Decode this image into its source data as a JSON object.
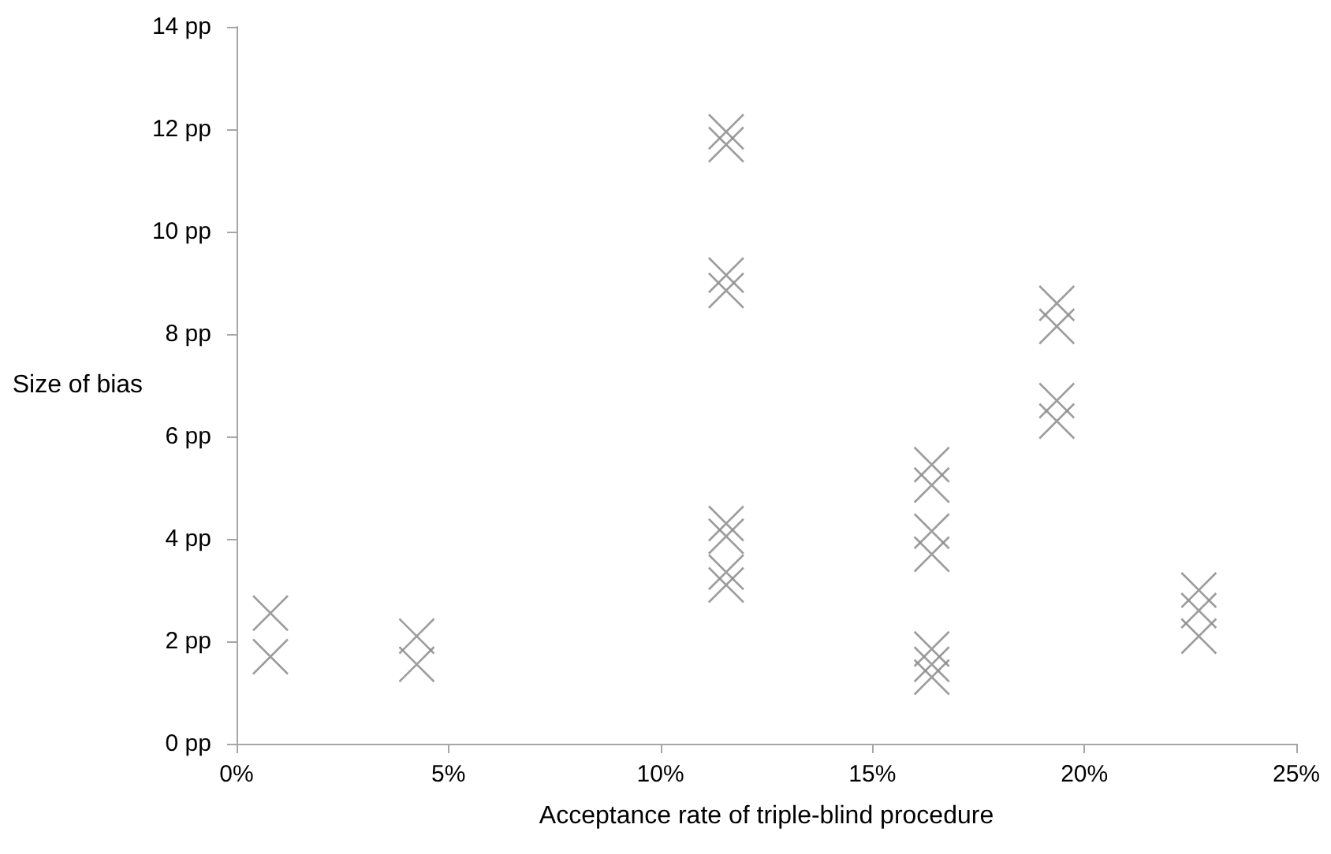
{
  "chart_data": {
    "type": "scatter",
    "xlabel": "Acceptance rate of triple-blind procedure",
    "ylabel": "Size of bias",
    "x": [
      0.8,
      0.8,
      4.25,
      4.25,
      11.55,
      11.55,
      11.55,
      11.55,
      11.55,
      11.55,
      11.55,
      11.55,
      16.4,
      16.4,
      16.4,
      16.4,
      16.4,
      16.4,
      16.4,
      19.35,
      19.35,
      19.35,
      19.35,
      22.7,
      22.7,
      22.7
    ],
    "series": [
      {
        "color": "#8c8c8c",
        "values": [
          2.55,
          1.7,
          2.1,
          1.55,
          11.95,
          11.7,
          9.15,
          8.85,
          4.3,
          4.05,
          3.35,
          3.1,
          5.45,
          5.05,
          4.15,
          3.7,
          1.85,
          1.55,
          1.3,
          8.6,
          8.15,
          6.7,
          6.3,
          3.0,
          2.6,
          2.1
        ]
      }
    ],
    "xlim": [
      0,
      25
    ],
    "xticks": [
      {
        "value": 0,
        "label": "0%"
      },
      {
        "value": 5,
        "label": "5%"
      },
      {
        "value": 10,
        "label": "10%"
      },
      {
        "value": 15,
        "label": "15%"
      },
      {
        "value": 20,
        "label": "20%"
      },
      {
        "value": 25,
        "label": "25%"
      }
    ],
    "ylim": [
      0,
      14
    ],
    "yticks": [
      {
        "value": 0,
        "label": "0 pp"
      },
      {
        "value": 2,
        "label": "2 pp"
      },
      {
        "value": 4,
        "label": "4 pp"
      },
      {
        "value": 6,
        "label": "6 pp"
      },
      {
        "value": 8,
        "label": "8 pp"
      },
      {
        "value": 10,
        "label": "10 pp"
      },
      {
        "value": 12,
        "label": "12 pp"
      },
      {
        "value": 14,
        "label": "14 pp"
      }
    ],
    "marker": "cross"
  }
}
